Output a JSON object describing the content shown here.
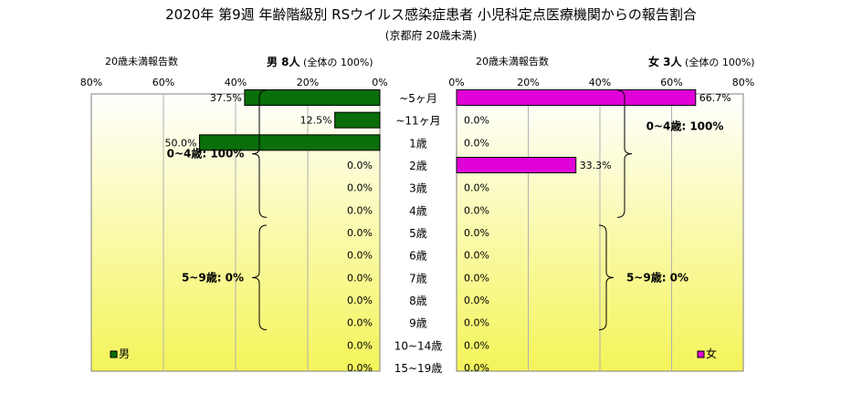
{
  "title": "2020年 第9週 年齢階級別 RSウイルス感染症患者 小児科定点医療機関からの報告割合",
  "subtitle": "(京都府 20歳未満)",
  "left_header": {
    "label": "20歳未満報告数",
    "gender_count": "男 8人",
    "total_note": "(全体の 100%)"
  },
  "right_header": {
    "label": "20歳未満報告数",
    "gender_count": "女 3人",
    "total_note": "(全体の 100%)"
  },
  "colors": {
    "male": "#0a6e0a",
    "female": "#e000d8",
    "plot_top": "#ffffff",
    "plot_bottom": "#f4f45a"
  },
  "chart_data": {
    "type": "bar",
    "categories": [
      "~5ヶ月",
      "~11ヶ月",
      "1歳",
      "2歳",
      "3歳",
      "4歳",
      "5歳",
      "6歳",
      "7歳",
      "8歳",
      "9歳",
      "10~14歳",
      "15~19歳"
    ],
    "series": [
      {
        "name": "男",
        "values": [
          37.5,
          12.5,
          50.0,
          0.0,
          0.0,
          0.0,
          0.0,
          0.0,
          0.0,
          0.0,
          0.0,
          0.0,
          0.0
        ],
        "labels": [
          "37.5%",
          "12.5%",
          "50.0%",
          "0.0%",
          "0.0%",
          "0.0%",
          "0.0%",
          "0.0%",
          "0.0%",
          "0.0%",
          "0.0%",
          "0.0%",
          "0.0%"
        ]
      },
      {
        "name": "女",
        "values": [
          66.7,
          0.0,
          0.0,
          33.3,
          0.0,
          0.0,
          0.0,
          0.0,
          0.0,
          0.0,
          0.0,
          0.0,
          0.0
        ],
        "labels": [
          "66.7%",
          "0.0%",
          "0.0%",
          "33.3%",
          "0.0%",
          "0.0%",
          "0.0%",
          "0.0%",
          "0.0%",
          "0.0%",
          "0.0%",
          "0.0%",
          "0.0%"
        ]
      }
    ],
    "xlim": [
      0,
      80
    ],
    "ticks": [
      "0%",
      "20%",
      "40%",
      "60%",
      "80%"
    ],
    "left_ticks": [
      "80%",
      "60%",
      "40%",
      "20%",
      "0%"
    ],
    "annotations": {
      "male": [
        "0~4歳: 100%",
        "5~9歳: 0%"
      ],
      "female": [
        "0~4歳: 100%",
        "5~9歳: 0%"
      ]
    },
    "grid": true,
    "legend": "bottom-corners"
  }
}
